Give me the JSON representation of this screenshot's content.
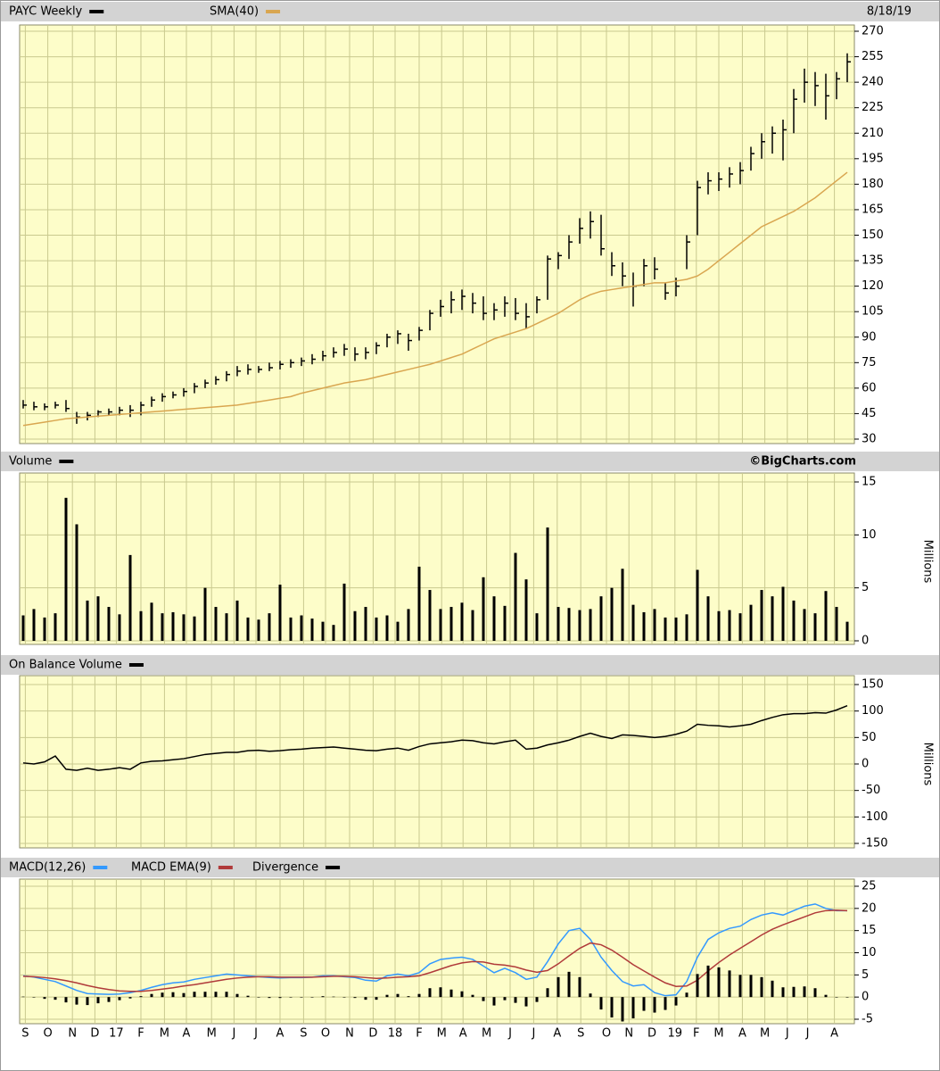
{
  "chart_data": [
    {
      "type": "ohlc",
      "date": "8/18/19",
      "ylim": [
        30,
        270
      ],
      "yticks": [
        30,
        45,
        60,
        75,
        90,
        105,
        120,
        135,
        150,
        165,
        180,
        195,
        210,
        225,
        240,
        255,
        270
      ],
      "grid": true,
      "series": [
        {
          "name": "PAYC Weekly",
          "color": "#000000",
          "high": [
            53,
            52,
            51,
            52,
            53,
            46,
            46,
            47,
            48,
            49,
            50,
            52,
            55,
            57,
            58,
            60,
            63,
            65,
            67,
            70,
            73,
            74,
            73,
            75,
            76,
            77,
            78,
            80,
            82,
            84,
            86,
            84,
            84,
            87,
            92,
            94,
            92,
            96,
            106,
            112,
            117,
            118,
            116,
            114,
            110,
            114,
            113,
            110,
            114,
            138,
            140,
            150,
            160,
            164,
            162,
            140,
            134,
            128,
            136,
            137,
            122,
            125,
            150,
            182,
            187,
            187,
            190,
            193,
            202,
            210,
            214,
            218,
            236,
            248,
            246,
            245,
            246,
            257
          ],
          "low": [
            48,
            47,
            47,
            48,
            46,
            39,
            41,
            43,
            44,
            44,
            43,
            44,
            49,
            52,
            54,
            55,
            57,
            60,
            62,
            64,
            67,
            68,
            69,
            70,
            71,
            72,
            73,
            74,
            76,
            78,
            79,
            76,
            77,
            80,
            84,
            86,
            82,
            88,
            94,
            102,
            104,
            106,
            104,
            100,
            100,
            102,
            100,
            95,
            104,
            112,
            130,
            136,
            145,
            148,
            138,
            126,
            120,
            108,
            120,
            124,
            112,
            114,
            130,
            150,
            174,
            176,
            178,
            180,
            188,
            195,
            198,
            194,
            210,
            228,
            226,
            218,
            230,
            240
          ],
          "close": [
            50,
            49,
            49,
            50,
            48,
            43,
            44,
            46,
            46,
            47,
            47,
            50,
            53,
            55,
            56,
            58,
            61,
            63,
            65,
            68,
            70,
            71,
            71,
            72,
            74,
            75,
            76,
            77,
            79,
            81,
            83,
            80,
            81,
            85,
            90,
            92,
            88,
            94,
            104,
            108,
            112,
            114,
            110,
            104,
            106,
            110,
            104,
            102,
            112,
            136,
            138,
            146,
            154,
            158,
            142,
            132,
            126,
            120,
            132,
            130,
            116,
            120,
            146,
            178,
            182,
            183,
            186,
            188,
            198,
            205,
            210,
            212,
            230,
            240,
            238,
            232,
            242,
            252
          ]
        },
        {
          "name": "SMA(40)",
          "color": "#d9a650",
          "values": [
            38,
            39,
            40,
            41,
            42,
            42.5,
            43,
            43.5,
            44,
            44.5,
            45,
            45.5,
            46,
            46.5,
            47,
            47.5,
            48,
            48.5,
            49,
            49.5,
            50,
            51,
            52,
            53,
            54,
            55,
            57,
            58.5,
            60,
            61.5,
            63,
            64,
            65,
            66.5,
            68,
            69.5,
            71,
            72.5,
            74,
            76,
            78,
            80,
            83,
            86,
            89,
            91,
            93,
            95,
            98,
            101,
            104,
            108,
            112,
            115,
            117,
            118,
            119,
            120,
            121,
            122,
            122,
            123,
            124,
            126,
            130,
            135,
            140,
            145,
            150,
            155,
            158,
            161,
            164,
            168,
            172,
            177,
            182,
            187
          ]
        }
      ]
    },
    {
      "type": "bar",
      "annotation": "©BigCharts.com",
      "ylabel": "Millions",
      "ylim": [
        0,
        15
      ],
      "yticks": [
        0,
        5,
        10,
        15
      ],
      "grid": true,
      "series": [
        {
          "name": "Volume",
          "color": "#000000",
          "values": [
            2.4,
            3,
            2.2,
            2.6,
            13.5,
            11,
            3.8,
            4.2,
            3.2,
            2.5,
            8.1,
            2.8,
            3.6,
            2.6,
            2.7,
            2.5,
            2.3,
            5,
            3.2,
            2.6,
            3.8,
            2.2,
            2,
            2.6,
            5.3,
            2.2,
            2.4,
            2.1,
            1.8,
            1.5,
            5.4,
            2.8,
            3.2,
            2.2,
            2.4,
            1.8,
            3,
            7,
            4.8,
            3,
            3.2,
            3.6,
            2.9,
            6,
            4.2,
            3.3,
            8.3,
            5.8,
            2.6,
            10.7,
            3.2,
            3.1,
            2.9,
            3,
            4.2,
            5,
            6.8,
            3.4,
            2.7,
            3,
            2.2,
            2.2,
            2.5,
            6.7,
            4.2,
            2.8,
            2.9,
            2.6,
            3.4,
            4.8,
            4.2,
            5.1,
            3.8,
            3,
            2.6,
            4.7,
            3.2,
            1.8
          ]
        }
      ]
    },
    {
      "type": "line",
      "ylabel": "Millions",
      "ylim": [
        -150,
        150
      ],
      "yticks": [
        -150,
        -100,
        -50,
        0,
        50,
        100,
        150
      ],
      "grid": true,
      "series": [
        {
          "name": "On Balance Volume",
          "color": "#000000",
          "values": [
            2,
            0,
            4,
            15,
            -10,
            -12,
            -8,
            -12,
            -10,
            -7,
            -10,
            2,
            5,
            6,
            8,
            10,
            14,
            18,
            20,
            22,
            22,
            25,
            26,
            24,
            25,
            27,
            28,
            30,
            31,
            32,
            30,
            28,
            26,
            25,
            28,
            30,
            26,
            33,
            38,
            40,
            42,
            45,
            44,
            40,
            38,
            42,
            45,
            28,
            30,
            36,
            40,
            45,
            52,
            58,
            52,
            48,
            55,
            54,
            52,
            50,
            52,
            56,
            62,
            75,
            73,
            72,
            70,
            72,
            75,
            82,
            88,
            93,
            95,
            95,
            97,
            96,
            102,
            110
          ]
        }
      ]
    },
    {
      "type": "line",
      "ylim": [
        -5,
        25
      ],
      "yticks": [
        -5,
        0,
        5,
        10,
        15,
        20,
        25
      ],
      "grid": true,
      "xlim": [
        0,
        77
      ],
      "xticks": [
        {
          "value": 0.2,
          "label": "S"
        },
        {
          "value": 2.3,
          "label": "O"
        },
        {
          "value": 4.6,
          "label": "N"
        },
        {
          "value": 6.7,
          "label": "D"
        },
        {
          "value": 8.7,
          "label": "17"
        },
        {
          "value": 11,
          "label": "F"
        },
        {
          "value": 13.2,
          "label": "M"
        },
        {
          "value": 15.25,
          "label": "A"
        },
        {
          "value": 17.6,
          "label": "M"
        },
        {
          "value": 19.7,
          "label": "J"
        },
        {
          "value": 21.75,
          "label": "J"
        },
        {
          "value": 24,
          "label": "A"
        },
        {
          "value": 26.2,
          "label": "S"
        },
        {
          "value": 28.25,
          "label": "O"
        },
        {
          "value": 30.5,
          "label": "N"
        },
        {
          "value": 32.7,
          "label": "D"
        },
        {
          "value": 34.75,
          "label": "18"
        },
        {
          "value": 37,
          "label": "F"
        },
        {
          "value": 39.1,
          "label": "M"
        },
        {
          "value": 41.1,
          "label": "A"
        },
        {
          "value": 43.3,
          "label": "M"
        },
        {
          "value": 45.5,
          "label": "J"
        },
        {
          "value": 47.7,
          "label": "J"
        },
        {
          "value": 49.9,
          "label": "A"
        },
        {
          "value": 52.1,
          "label": "S"
        },
        {
          "value": 54.5,
          "label": "O"
        },
        {
          "value": 56.6,
          "label": "N"
        },
        {
          "value": 58.75,
          "label": "D"
        },
        {
          "value": 60.9,
          "label": "19"
        },
        {
          "value": 62.9,
          "label": "F"
        },
        {
          "value": 65,
          "label": "M"
        },
        {
          "value": 67.2,
          "label": "A"
        },
        {
          "value": 69.3,
          "label": "M"
        },
        {
          "value": 71.4,
          "label": "J"
        },
        {
          "value": 73.3,
          "label": "J"
        },
        {
          "value": 75.8,
          "label": "A"
        }
      ],
      "series": [
        {
          "name": "MACD(12,26)",
          "color": "#3399ff",
          "values": [
            4.8,
            4.5,
            4,
            3.5,
            2.5,
            1.5,
            0.8,
            0.7,
            0.6,
            0.7,
            1,
            1.5,
            2.2,
            2.8,
            3.2,
            3.4,
            4,
            4.4,
            4.8,
            5.2,
            5,
            4.8,
            4.6,
            4.4,
            4.3,
            4.4,
            4.4,
            4.5,
            4.8,
            4.8,
            4.6,
            4.4,
            3.8,
            3.6,
            4.8,
            5.2,
            4.8,
            5.5,
            7.5,
            8.5,
            8.8,
            9,
            8.5,
            7,
            5.5,
            6.5,
            5.5,
            4,
            4.5,
            8,
            12,
            15,
            15.5,
            13,
            9,
            6,
            3.5,
            2.5,
            2.8,
            1,
            0.3,
            0.5,
            3.5,
            9,
            13,
            14.5,
            15.5,
            16,
            17.5,
            18.5,
            19,
            18.5,
            19.5,
            20.5,
            21,
            20,
            19.5,
            19.5
          ]
        },
        {
          "name": "MACD EMA(9)",
          "color": "#b03a3a",
          "values": [
            4.7,
            4.6,
            4.4,
            4.1,
            3.7,
            3.2,
            2.6,
            2.1,
            1.7,
            1.4,
            1.3,
            1.3,
            1.5,
            1.8,
            2.1,
            2.5,
            2.8,
            3.2,
            3.6,
            4,
            4.3,
            4.5,
            4.6,
            4.6,
            4.5,
            4.5,
            4.5,
            4.5,
            4.6,
            4.7,
            4.7,
            4.6,
            4.4,
            4.2,
            4.3,
            4.5,
            4.6,
            4.8,
            5.5,
            6.3,
            7.1,
            7.7,
            8,
            7.9,
            7.4,
            7.2,
            6.8,
            6.1,
            5.6,
            6,
            7.5,
            9.3,
            11,
            12.2,
            11.8,
            10.6,
            9,
            7.3,
            5.9,
            4.5,
            3.2,
            2.4,
            2.5,
            3.8,
            5.9,
            7.8,
            9.5,
            11,
            12.5,
            14,
            15.3,
            16.3,
            17.2,
            18.1,
            19,
            19.5,
            19.6,
            19.5
          ]
        },
        {
          "name": "Divergence",
          "color": "#000000",
          "mark": "bar",
          "values": [
            0.1,
            -0.1,
            -0.4,
            -0.6,
            -1.2,
            -1.7,
            -1.8,
            -1.4,
            -1.1,
            -0.7,
            -0.3,
            0.2,
            0.7,
            1,
            1.1,
            0.9,
            1.2,
            1.2,
            1.2,
            1.2,
            0.7,
            0.3,
            0,
            -0.2,
            -0.2,
            -0.1,
            -0.1,
            0,
            0.2,
            0.1,
            -0.1,
            -0.2,
            -0.6,
            -0.6,
            0.5,
            0.7,
            0.2,
            0.7,
            2,
            2.2,
            1.7,
            1.3,
            0.5,
            -0.9,
            -1.9,
            -0.7,
            -1.3,
            -2.1,
            -1.1,
            2,
            4.5,
            5.7,
            4.5,
            0.8,
            -2.8,
            -4.6,
            -5.5,
            -4.8,
            -3.1,
            -3.5,
            -2.9,
            -1.9,
            1,
            5.2,
            7.1,
            6.7,
            6,
            5,
            5,
            4.5,
            3.7,
            2.2,
            2.3,
            2.4,
            2,
            0.5,
            -0.1,
            0
          ]
        }
      ]
    }
  ]
}
